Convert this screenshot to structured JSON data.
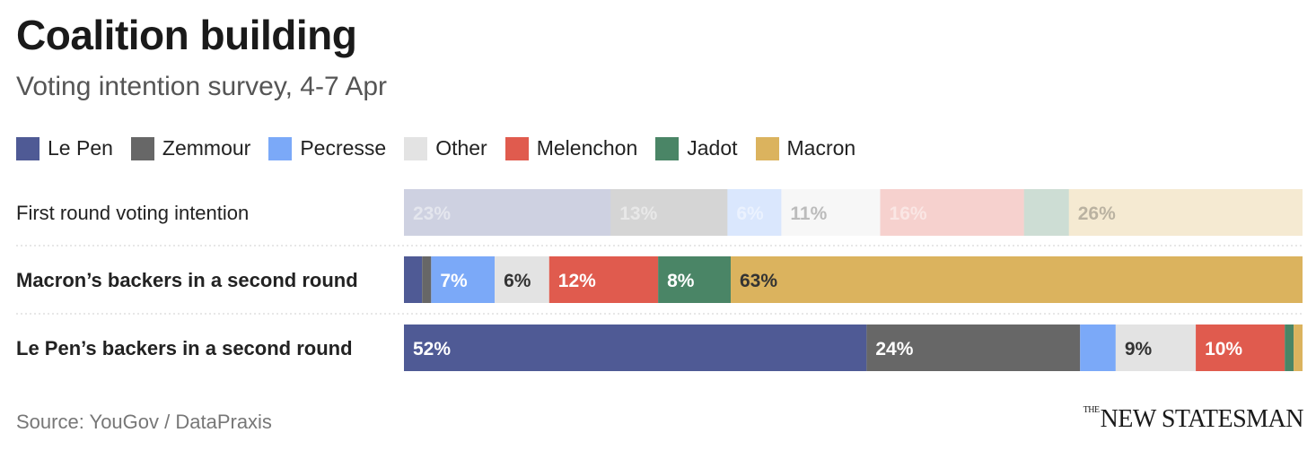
{
  "title": "Coalition building",
  "subtitle": "Voting intention survey, 4-7 Apr",
  "source": "Source: YouGov / DataPraxis",
  "brand": {
    "prefix": "THE",
    "name": "NEW STATESMAN"
  },
  "chart_data": {
    "type": "bar",
    "orientation": "horizontal",
    "stacked": true,
    "unit": "%",
    "series": [
      {
        "name": "Le Pen",
        "color": "#4f5a95",
        "label_color": "#ffffff"
      },
      {
        "name": "Zemmour",
        "color": "#676767",
        "label_color": "#ffffff"
      },
      {
        "name": "Pecresse",
        "color": "#7ba9f8",
        "label_color": "#ffffff"
      },
      {
        "name": "Other",
        "color": "#e3e3e3",
        "label_color": "#333333"
      },
      {
        "name": "Melenchon",
        "color": "#e05b4e",
        "label_color": "#ffffff"
      },
      {
        "name": "Jadot",
        "color": "#4a8566",
        "label_color": "#ffffff"
      },
      {
        "name": "Macron",
        "color": "#dbb35e",
        "label_color": "#333333"
      }
    ],
    "rows": [
      {
        "label": "First round voting intention",
        "bold": false,
        "faded": true,
        "values": [
          23,
          13,
          6,
          11,
          16,
          5,
          26
        ],
        "value_labels": [
          "23%",
          "13%",
          "6%",
          "11%",
          "16%",
          "",
          "26%"
        ]
      },
      {
        "label": "Macron’s backers in a second round",
        "bold": true,
        "faded": false,
        "values": [
          2,
          1,
          7,
          6,
          12,
          8,
          63
        ],
        "value_labels": [
          "",
          "",
          "7%",
          "6%",
          "12%",
          "8%",
          "63%"
        ]
      },
      {
        "label": "Le Pen’s backers in a second round",
        "bold": true,
        "faded": false,
        "values": [
          52,
          24,
          4,
          9,
          10,
          1,
          1
        ],
        "value_labels": [
          "52%",
          "24%",
          "",
          "9%",
          "10%",
          "",
          ""
        ]
      }
    ]
  }
}
